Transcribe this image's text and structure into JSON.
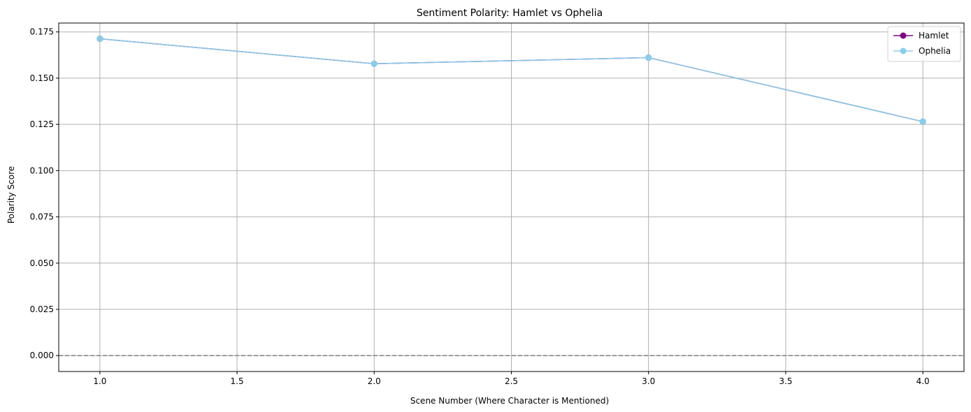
{
  "chart_data": {
    "type": "line",
    "title": "Sentiment Polarity: Hamlet vs Ophelia",
    "xlabel": "Scene Number (Where Character is Mentioned)",
    "ylabel": "Polarity Score",
    "xlim": [
      0.85,
      4.15
    ],
    "ylim": [
      -0.0086,
      0.1798
    ],
    "xticks": [
      1.0,
      1.5,
      2.0,
      2.5,
      3.0,
      3.5,
      4.0
    ],
    "xtick_labels": [
      "1.0",
      "1.5",
      "2.0",
      "2.5",
      "3.0",
      "3.5",
      "4.0"
    ],
    "yticks": [
      0.0,
      0.025,
      0.05,
      0.075,
      0.1,
      0.125,
      0.15,
      0.175
    ],
    "ytick_labels": [
      "0.000",
      "0.025",
      "0.050",
      "0.075",
      "0.100",
      "0.125",
      "0.150",
      "0.175"
    ],
    "grid": true,
    "legend_position": "top-right",
    "reference_line": {
      "y": 0.0,
      "style": "dashed",
      "color": "#808080"
    },
    "x": [
      1,
      2,
      3,
      4
    ],
    "series": [
      {
        "name": "Hamlet",
        "color": "#800080",
        "marker": "circle",
        "values": [
          0.1713,
          0.1578,
          0.1611,
          0.1265
        ]
      },
      {
        "name": "Ophelia",
        "color": "#87ceeb",
        "marker": "circle",
        "values": [
          0.1713,
          0.1578,
          0.1611,
          0.1265
        ]
      }
    ]
  }
}
